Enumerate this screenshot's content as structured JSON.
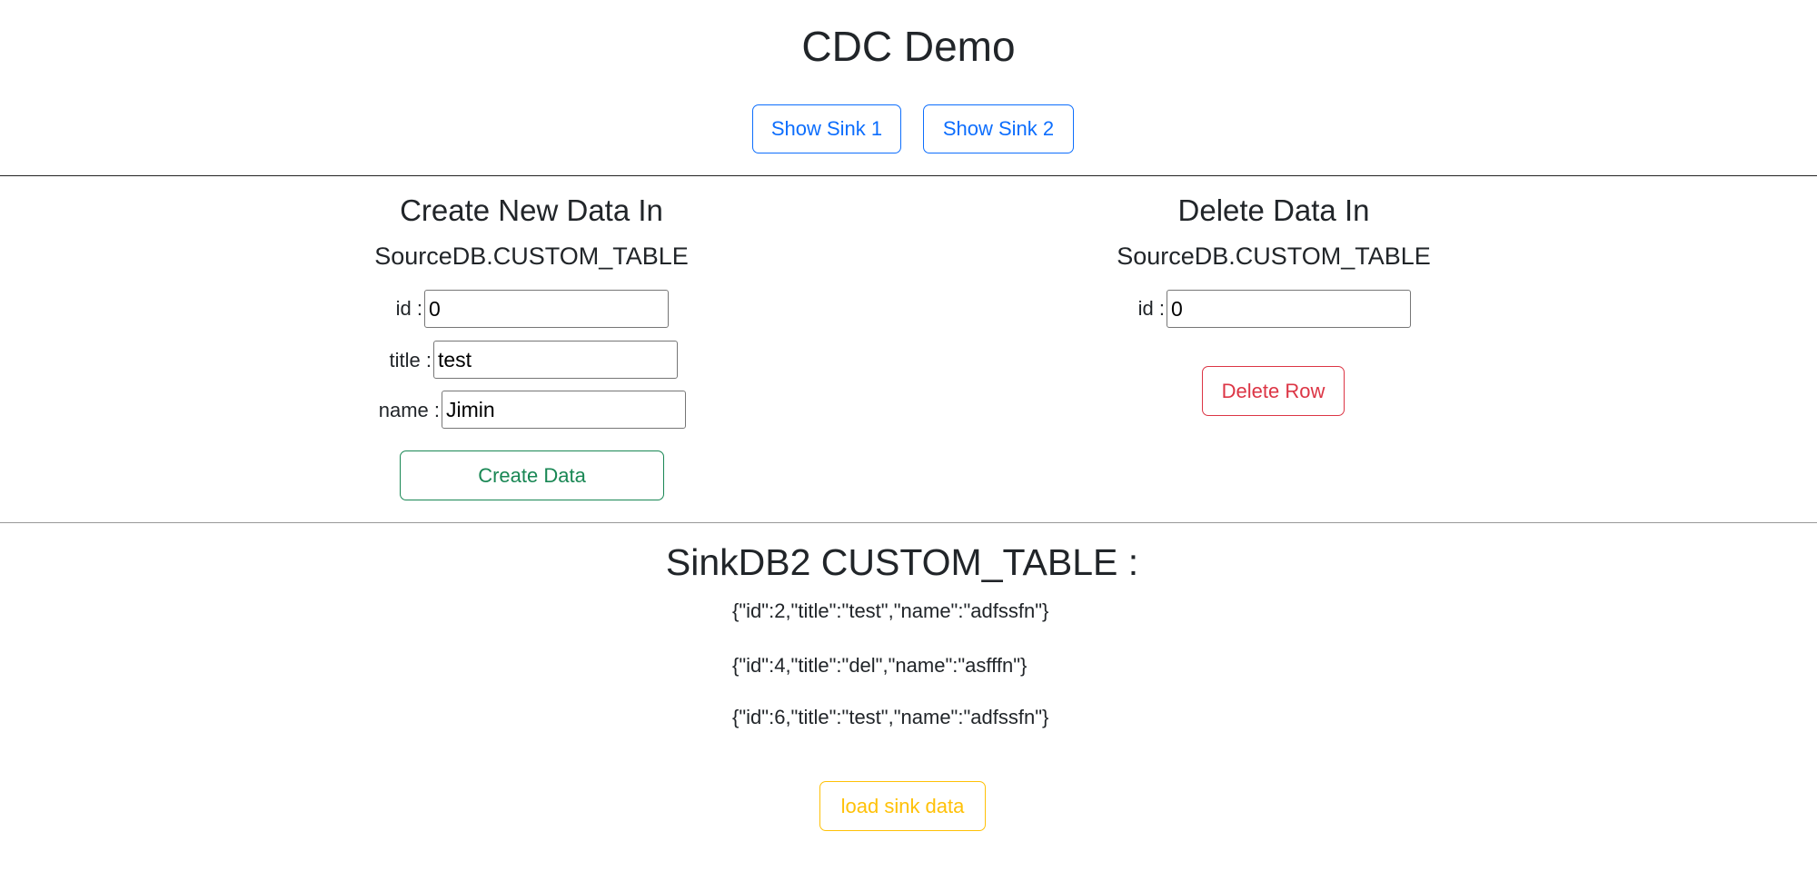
{
  "header": {
    "title": "CDC Demo",
    "show_sink_1": "Show Sink 1",
    "show_sink_2": "Show Sink 2"
  },
  "create": {
    "heading": "Create New Data In",
    "table": "SourceDB.CUSTOM_TABLE",
    "id_label": "id :",
    "id_value": "0",
    "title_label": "title :",
    "title_value": "test",
    "name_label": "name :",
    "name_value": "Jimin",
    "button": "Create Data"
  },
  "delete": {
    "heading": "Delete Data In",
    "table": "SourceDB.CUSTOM_TABLE",
    "id_label": "id :",
    "id_value": "0",
    "button": "Delete Row"
  },
  "sink": {
    "heading": "SinkDB2 CUSTOM_TABLE :",
    "rows": [
      "{\"id\":2,\"title\":\"test\",\"name\":\"adfssfn\"}",
      "{\"id\":4,\"title\":\"del\",\"name\":\"asfffn\"}",
      "{\"id\":6,\"title\":\"test\",\"name\":\"adfssfn\"}"
    ],
    "load_button": "load sink data"
  },
  "colors": {
    "primary": "#0d6efd",
    "success": "#198754",
    "danger": "#dc3545",
    "warning": "#ffc107",
    "text": "#212529"
  }
}
